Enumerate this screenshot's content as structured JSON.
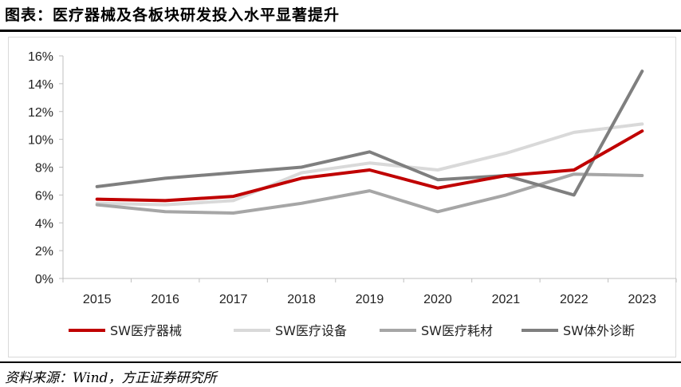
{
  "title": "图表：医疗器械及各板块研发投入水平显著提升",
  "source": "资料来源：Wind，方正证券研究所",
  "chart_data": {
    "type": "line",
    "x": [
      "2015",
      "2016",
      "2017",
      "2018",
      "2019",
      "2020",
      "2021",
      "2022",
      "2023"
    ],
    "ylim": [
      0,
      16
    ],
    "yticks": [
      "0%",
      "2%",
      "4%",
      "6%",
      "8%",
      "10%",
      "12%",
      "14%",
      "16%"
    ],
    "grid": false,
    "legend_position": "bottom",
    "series": [
      {
        "name": "SW医疗器械",
        "color": "#c00000",
        "values": [
          5.7,
          5.6,
          5.9,
          7.2,
          7.8,
          6.5,
          7.4,
          7.8,
          10.6
        ]
      },
      {
        "name": "SW医疗设备",
        "color": "#d9d9d9",
        "values": [
          5.4,
          5.3,
          5.6,
          7.6,
          8.3,
          7.8,
          9.0,
          10.5,
          11.1
        ]
      },
      {
        "name": "SW医疗耗材",
        "color": "#a6a6a6",
        "values": [
          5.3,
          4.8,
          4.7,
          5.4,
          6.3,
          4.8,
          6.0,
          7.5,
          7.4
        ]
      },
      {
        "name": "SW体外诊断",
        "color": "#7f7f7f",
        "values": [
          6.6,
          7.2,
          7.6,
          8.0,
          9.1,
          7.1,
          7.4,
          6.0,
          14.9
        ]
      }
    ]
  }
}
